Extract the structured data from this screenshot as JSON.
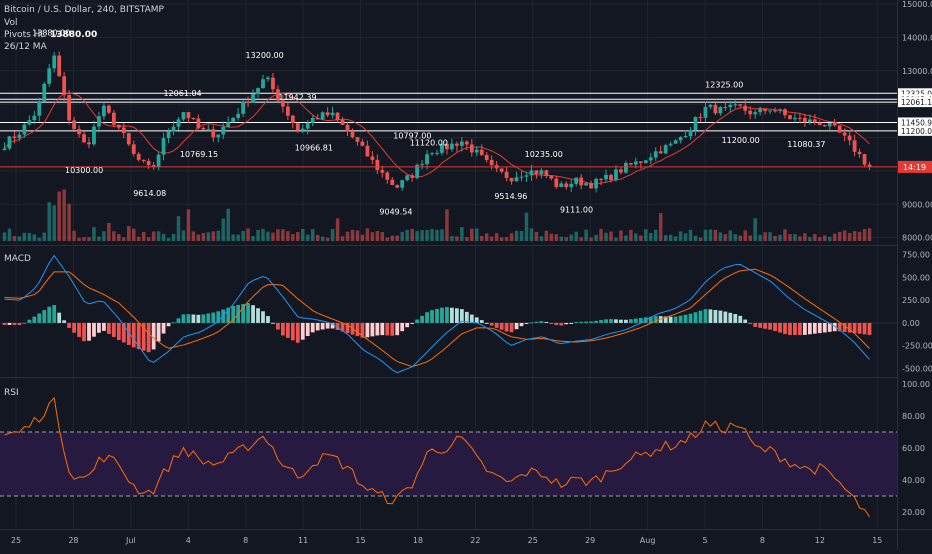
{
  "legend": {
    "symbol_line": "Bitcoin / U.S. Dollar, 240, BITSTAMP",
    "vol_label": "Vol",
    "pivots_label": "Pivots HL",
    "pivots_value": "13880.00",
    "ma_label": "26/12 MA"
  },
  "price_axis": {
    "ticks": [
      {
        "label": "15000.00",
        "value": 15000
      },
      {
        "label": "14000.00",
        "value": 14000
      },
      {
        "label": "13000.00",
        "value": 13000
      },
      {
        "label": "9000.00",
        "value": 9000
      },
      {
        "label": "8000.00",
        "value": 8000
      }
    ],
    "level_tags": [
      {
        "label": "12325.00",
        "value": 12325
      },
      {
        "label": "12145.42",
        "value": 12145.42
      },
      {
        "label": "12061.10",
        "value": 12061.1
      },
      {
        "label": "11450.93",
        "value": 11450.93
      },
      {
        "label": "11200.00",
        "value": 11200
      }
    ],
    "current_price_label": "14:19",
    "current_price_value": 10120
  },
  "macd_panel": {
    "title": "MACD",
    "ticks": [
      {
        "label": "750.00",
        "value": 750
      },
      {
        "label": "500.00",
        "value": 500
      },
      {
        "label": "250.00",
        "value": 250
      },
      {
        "label": "0.00",
        "value": 0
      },
      {
        "label": "-250.00",
        "value": -250
      },
      {
        "label": "-500.00",
        "value": -500
      }
    ]
  },
  "rsi_panel": {
    "title": "RSI",
    "ticks": [
      {
        "label": "100.00",
        "value": 100
      },
      {
        "label": "80.00",
        "value": 80
      },
      {
        "label": "60.00",
        "value": 60
      },
      {
        "label": "40.00",
        "value": 40
      },
      {
        "label": "20.00",
        "value": 20
      }
    ],
    "upper_band": 70,
    "lower_band": 30
  },
  "time_axis": {
    "labels": [
      "25",
      "28",
      "Jul",
      "4",
      "8",
      "11",
      "15",
      "18",
      "22",
      "25",
      "29",
      "Aug",
      "5",
      "8",
      "12",
      "15"
    ]
  },
  "colors": {
    "background": "#131722",
    "grid": "#1f2430",
    "up": "#26a69a",
    "down": "#ef5350",
    "ma": "#e53935",
    "macd_line": "#2196f3",
    "signal_line": "#ff6d00",
    "rsi_line": "#ff6d00",
    "rsi_band_fill": "#2a1b45",
    "level_line": "#ffffff",
    "current_line": "#e53935"
  },
  "chart_data": {
    "type": "candlestick",
    "title": "Bitcoin / U.S. Dollar, 240, BITSTAMP",
    "price_ylim": [
      7900,
      15000
    ],
    "x_dates": [
      "Jun 23",
      "Jun 24",
      "Jun 25",
      "Jun 26",
      "Jun 27",
      "Jun 28",
      "Jun 29",
      "Jun 30",
      "Jul 1",
      "Jul 2",
      "Jul 3",
      "Jul 4",
      "Jul 5",
      "Jul 6",
      "Jul 7",
      "Jul 8",
      "Jul 9",
      "Jul 10",
      "Jul 11",
      "Jul 12",
      "Jul 13",
      "Jul 14",
      "Jul 15",
      "Jul 16",
      "Jul 17",
      "Jul 18",
      "Jul 19",
      "Jul 20",
      "Jul 21",
      "Jul 22",
      "Jul 23",
      "Jul 24",
      "Jul 25",
      "Jul 26",
      "Jul 27",
      "Jul 28",
      "Jul 29",
      "Jul 30",
      "Jul 31",
      "Aug 1",
      "Aug 2",
      "Aug 3",
      "Aug 4",
      "Aug 5",
      "Aug 6",
      "Aug 7",
      "Aug 8",
      "Aug 9",
      "Aug 10",
      "Aug 11",
      "Aug 12",
      "Aug 13",
      "Aug 14",
      "Aug 15"
    ],
    "close_path": [
      10800,
      11200,
      11800,
      13500,
      11500,
      10700,
      11900,
      11300,
      10400,
      10000,
      11200,
      11800,
      11200,
      11100,
      11600,
      12200,
      12800,
      12000,
      11200,
      11600,
      11700,
      11200,
      10600,
      10000,
      9500,
      9900,
      10600,
      10700,
      10900,
      10500,
      10000,
      9800,
      10000,
      9950,
      9500,
      9700,
      9600,
      9800,
      10100,
      10300,
      10600,
      10800,
      11300,
      11900,
      11800,
      11900,
      11700,
      11900,
      11600,
      11500,
      11450,
      11200,
      10700,
      10100
    ],
    "pivots": [
      {
        "label": "13880.00",
        "value": 13880,
        "date": "Jun 26"
      },
      {
        "label": "10300.00",
        "value": 10300,
        "date": "Jun 28"
      },
      {
        "label": "9614.08",
        "value": 9614.08,
        "date": "Jul 2"
      },
      {
        "label": "12061.04",
        "value": 12061.04,
        "date": "Jul 4"
      },
      {
        "label": "10769.15",
        "value": 10769.15,
        "date": "Jul 5"
      },
      {
        "label": "13200.00",
        "value": 13200,
        "date": "Jul 9"
      },
      {
        "label": "11942.39",
        "value": 11942.39,
        "date": "Jul 11"
      },
      {
        "label": "10966.81",
        "value": 10966.81,
        "date": "Jul 12"
      },
      {
        "label": "9049.54",
        "value": 9049.54,
        "date": "Jul 17"
      },
      {
        "label": "10797.00",
        "value": 10797,
        "date": "Jul 18"
      },
      {
        "label": "11120.00",
        "value": 11120,
        "date": "Jul 19"
      },
      {
        "label": "9514.96",
        "value": 9514.96,
        "date": "Jul 24"
      },
      {
        "label": "10235.00",
        "value": 10235,
        "date": "Jul 26"
      },
      {
        "label": "9111.00",
        "value": 9111,
        "date": "Jul 28"
      },
      {
        "label": "12325.00",
        "value": 12325,
        "date": "Aug 6"
      },
      {
        "label": "11200.00",
        "value": 11200,
        "date": "Aug 7"
      },
      {
        "label": "11080.37",
        "value": 11080.37,
        "date": "Aug 11"
      }
    ],
    "horizontal_levels": [
      12325,
      12145.42,
      12061.1,
      11450.93,
      11200
    ],
    "current_price": 10120,
    "macd_ylim": [
      -560,
      800
    ],
    "macd_path": [
      260,
      250,
      400,
      750,
      500,
      200,
      250,
      50,
      -200,
      -450,
      -320,
      -150,
      -100,
      0,
      200,
      450,
      520,
      300,
      60,
      40,
      0,
      -120,
      -300,
      -400,
      -550,
      -480,
      -300,
      -120,
      20,
      0,
      -100,
      -250,
      -180,
      -150,
      -230,
      -200,
      -180,
      -120,
      -80,
      0,
      100,
      150,
      250,
      460,
      600,
      650,
      550,
      450,
      280,
      150,
      50,
      -50,
      -200,
      -400
    ],
    "signal_path": [
      280,
      270,
      320,
      560,
      560,
      400,
      320,
      220,
      50,
      -150,
      -280,
      -240,
      -180,
      -110,
      30,
      250,
      420,
      420,
      260,
      120,
      50,
      -20,
      -150,
      -280,
      -420,
      -480,
      -420,
      -280,
      -120,
      -50,
      -60,
      -150,
      -180,
      -170,
      -200,
      -210,
      -195,
      -160,
      -110,
      -50,
      30,
      90,
      160,
      320,
      480,
      570,
      590,
      520,
      400,
      270,
      150,
      30,
      -100,
      -280
    ],
    "rsi_ylim": [
      10,
      100
    ],
    "rsi_path": [
      68,
      70,
      78,
      90,
      45,
      40,
      55,
      50,
      35,
      32,
      48,
      60,
      52,
      50,
      55,
      62,
      68,
      50,
      42,
      52,
      55,
      48,
      36,
      30,
      27,
      38,
      58,
      60,
      66,
      52,
      42,
      38,
      45,
      44,
      37,
      40,
      39,
      45,
      52,
      55,
      60,
      62,
      66,
      75,
      72,
      75,
      60,
      58,
      52,
      47,
      47,
      40,
      28,
      17
    ]
  }
}
